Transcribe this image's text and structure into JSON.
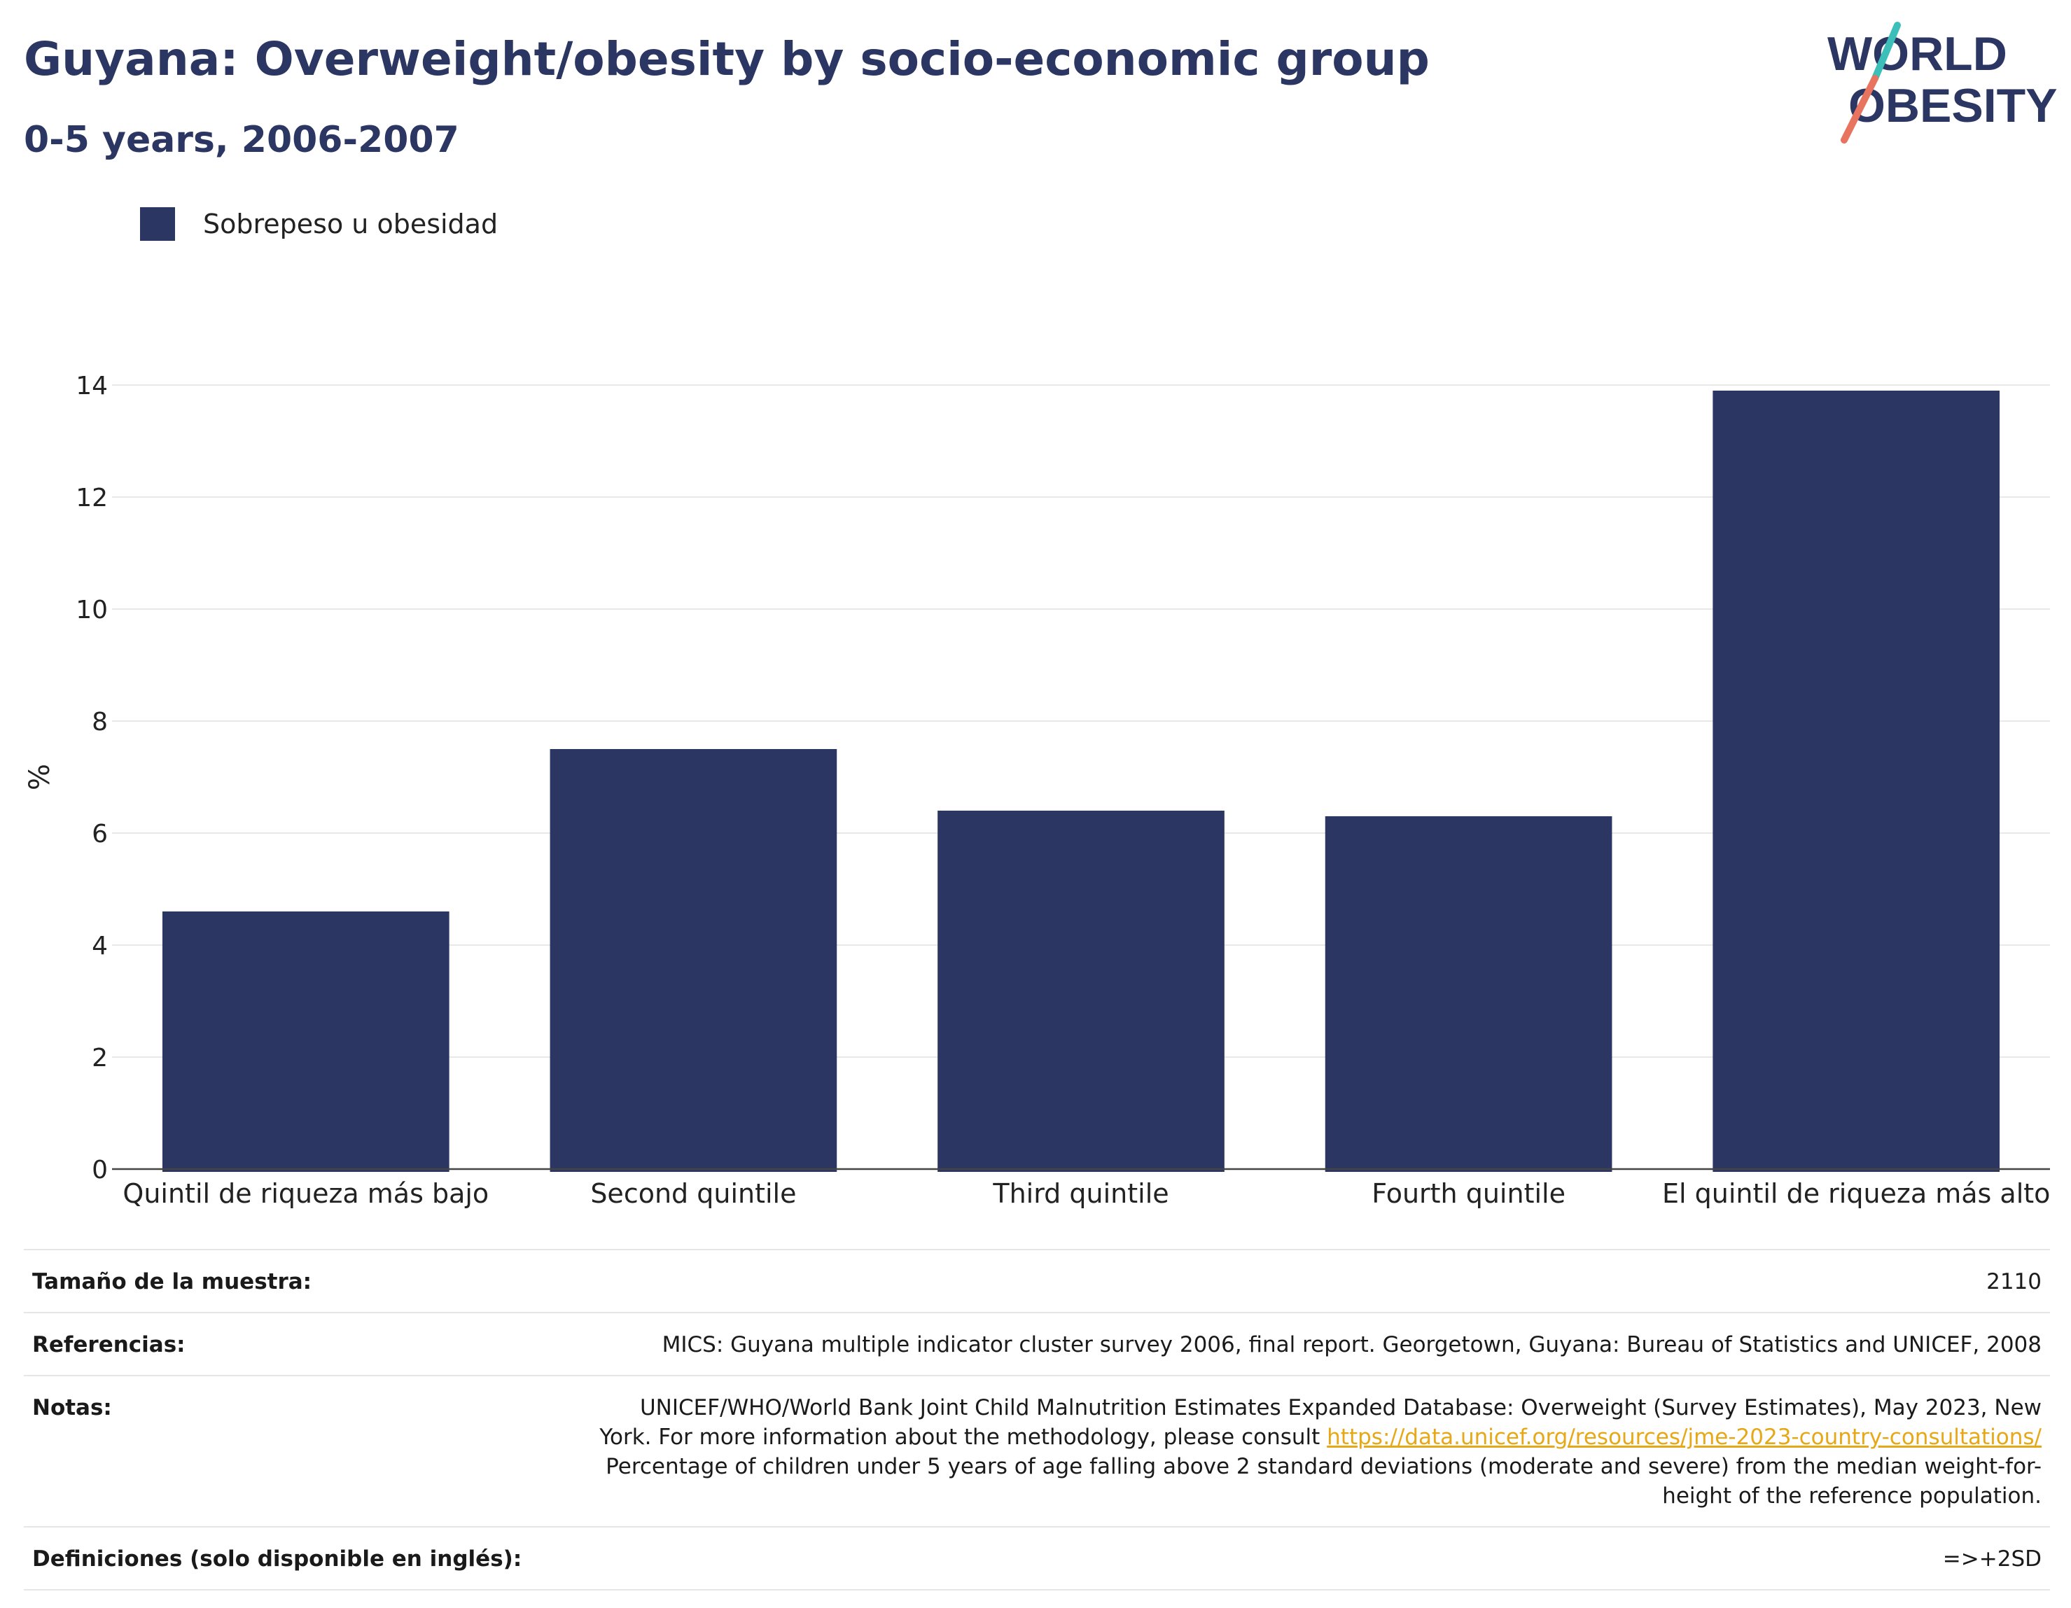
{
  "header": {
    "title": "Guyana: Overweight/obesity by socio-economic group",
    "subtitle": "0-5 years, 2006-2007",
    "logo": {
      "line1": "WORLD",
      "line2": "OBESITY"
    }
  },
  "colors": {
    "bar": "#2b3663",
    "title": "#2b3663",
    "link": "#e6a817",
    "logo_teal": "#3bbfb8",
    "logo_coral": "#e8735f"
  },
  "chart_data": {
    "type": "bar",
    "categories": [
      "Quintil de riqueza más bajo",
      "Second quintile",
      "Third quintile",
      "Fourth quintile",
      "El quintil de riqueza más alto"
    ],
    "series": [
      {
        "name": "Sobrepeso u obesidad",
        "values": [
          4.6,
          7.5,
          6.4,
          6.3,
          13.9
        ]
      }
    ],
    "ylabel": "%",
    "xlabel": "",
    "ylim": [
      0,
      14
    ],
    "yticks": [
      0,
      2,
      4,
      6,
      8,
      10,
      12,
      14
    ],
    "grid": true,
    "legend_position": "top-left"
  },
  "meta": {
    "sample_label": "Tamaño de la muestra:",
    "sample_value": "2110",
    "references_label": "Referencias:",
    "references_value": "MICS: Guyana multiple indicator cluster survey 2006, final report. Georgetown, Guyana: Bureau of Statistics and UNICEF, 2008",
    "notes_label": "Notas:",
    "notes_text_1": "UNICEF/WHO/World Bank Joint Child Malnutrition Estimates Expanded Database: Overweight (Survey Estimates), May 2023, New York. For more information about the methodology, please consult ",
    "notes_link": "https://data.unicef.org/resources/jme-2023-country-consultations/",
    "notes_text_2": "Percentage of children under 5 years of age falling above 2 standard deviations (moderate and severe) from the median weight-for-height of the reference population.",
    "definitions_label": "Definiciones (solo disponible en inglés):",
    "definitions_value": "=>+2SD"
  }
}
